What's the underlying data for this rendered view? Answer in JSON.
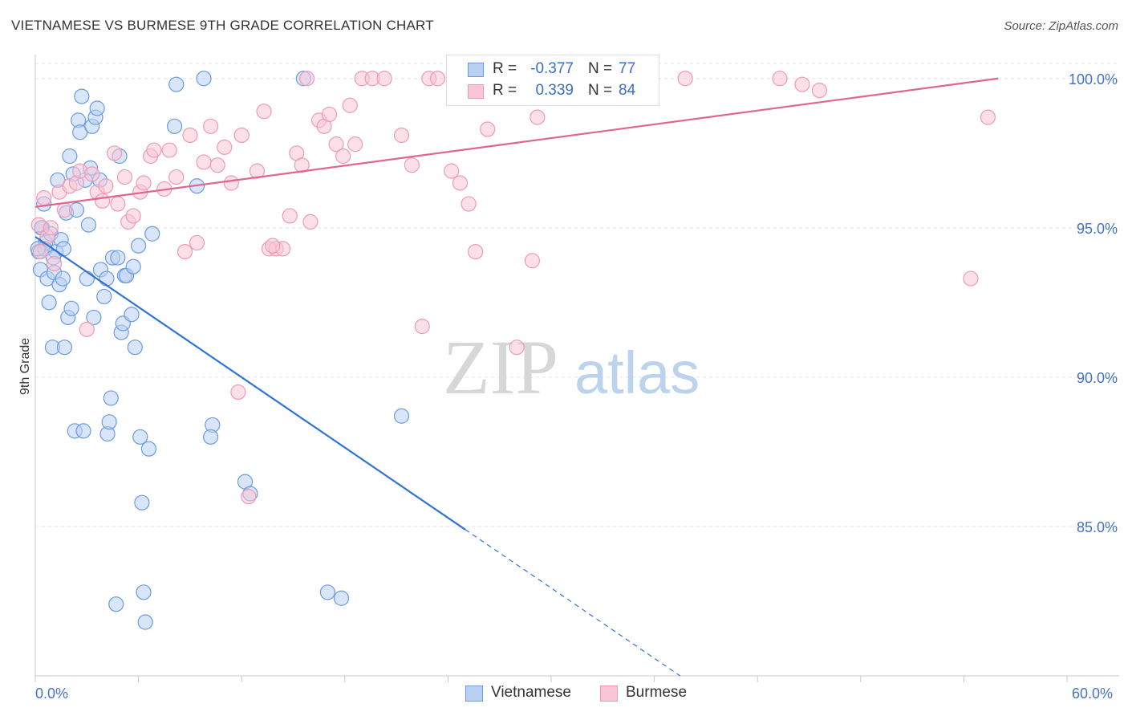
{
  "title": "VIETNAMESE VS BURMESE 9TH GRADE CORRELATION CHART",
  "source": "Source: ZipAtlas.com",
  "watermark": {
    "zip": "ZIP",
    "atlas": "atlas"
  },
  "legend": {
    "rows": [
      {
        "r_label": "R =",
        "r_value": "-0.377",
        "n_label": "N =",
        "n_value": "77"
      },
      {
        "r_label": "R =",
        "r_value": "0.339",
        "n_label": "N =",
        "n_value": "84"
      }
    ]
  },
  "bottom_legend": [
    "Vietnamese",
    "Burmese"
  ],
  "colors": {
    "vietnamese_fill": "#b9d0f2",
    "vietnamese_stroke": "#6b9be0",
    "vietnamese_line": "#2f72d6",
    "burmese_fill": "#f8c6d5",
    "burmese_stroke": "#ee9ab5",
    "burmese_line": "#e0668f",
    "tick_text": "#4472c4",
    "grid": "#e3e3e3"
  },
  "chart_data": {
    "type": "scatter",
    "title": "VIETNAMESE VS BURMESE 9TH GRADE CORRELATION CHART",
    "xlabel": "",
    "ylabel": "9th Grade",
    "xlim": [
      0,
      60
    ],
    "ylim": [
      80,
      100.8
    ],
    "x_tick_labels": [
      "0.0%",
      "60.0%"
    ],
    "y_ticks": [
      85,
      90,
      95,
      100
    ],
    "y_tick_labels": [
      "85.0%",
      "90.0%",
      "95.0%",
      "100.0%"
    ],
    "grid": true,
    "legend_position": "top-center",
    "series": [
      {
        "name": "Vietnamese",
        "r": -0.377,
        "n": 77,
        "trend": {
          "x0": 0,
          "y0": 94.7,
          "x1": 25.0,
          "y1": 84.9,
          "dashed_to_x": 37.5,
          "dashed_to_y": 80.0
        },
        "points": [
          [
            0.2,
            94.2
          ],
          [
            0.3,
            93.6
          ],
          [
            0.4,
            95.0
          ],
          [
            0.5,
            95.8
          ],
          [
            0.6,
            94.5
          ],
          [
            0.7,
            93.3
          ],
          [
            0.8,
            92.5
          ],
          [
            0.9,
            94.8
          ],
          [
            1.0,
            91.0
          ],
          [
            1.1,
            93.5
          ],
          [
            1.2,
            94.2
          ],
          [
            1.3,
            96.6
          ],
          [
            1.4,
            93.1
          ],
          [
            1.5,
            94.6
          ],
          [
            1.6,
            93.3
          ],
          [
            1.7,
            91.0
          ],
          [
            1.8,
            95.5
          ],
          [
            1.9,
            92.0
          ],
          [
            2.0,
            97.4
          ],
          [
            2.1,
            92.3
          ],
          [
            2.2,
            96.8
          ],
          [
            2.3,
            88.2
          ],
          [
            2.5,
            98.6
          ],
          [
            2.6,
            98.2
          ],
          [
            2.7,
            99.4
          ],
          [
            2.8,
            88.2
          ],
          [
            3.0,
            93.3
          ],
          [
            3.1,
            95.1
          ],
          [
            3.2,
            97.0
          ],
          [
            3.3,
            98.4
          ],
          [
            3.4,
            92.0
          ],
          [
            3.5,
            98.7
          ],
          [
            3.6,
            99.0
          ],
          [
            3.8,
            93.6
          ],
          [
            4.0,
            92.7
          ],
          [
            4.2,
            88.1
          ],
          [
            4.3,
            88.5
          ],
          [
            4.4,
            89.3
          ],
          [
            4.5,
            94.0
          ],
          [
            4.7,
            82.4
          ],
          [
            4.8,
            94.0
          ],
          [
            5.0,
            91.5
          ],
          [
            5.1,
            91.8
          ],
          [
            5.2,
            93.4
          ],
          [
            5.3,
            93.4
          ],
          [
            5.6,
            92.1
          ],
          [
            5.7,
            93.7
          ],
          [
            5.8,
            91.0
          ],
          [
            6.0,
            94.4
          ],
          [
            6.1,
            88.0
          ],
          [
            6.2,
            85.8
          ],
          [
            6.3,
            82.8
          ],
          [
            6.4,
            81.8
          ],
          [
            6.6,
            87.6
          ],
          [
            6.8,
            94.8
          ],
          [
            8.1,
            98.4
          ],
          [
            8.2,
            99.8
          ],
          [
            9.4,
            96.4
          ],
          [
            9.8,
            100.0
          ],
          [
            10.3,
            88.4
          ],
          [
            10.2,
            88.0
          ],
          [
            12.2,
            86.5
          ],
          [
            12.5,
            86.1
          ],
          [
            15.6,
            100.0
          ],
          [
            17.0,
            82.8
          ],
          [
            17.8,
            82.6
          ],
          [
            21.3,
            88.7
          ],
          [
            0.35,
            95.0
          ],
          [
            0.55,
            94.3
          ],
          [
            1.05,
            94.0
          ],
          [
            2.4,
            95.6
          ],
          [
            3.75,
            96.6
          ],
          [
            4.9,
            97.4
          ],
          [
            1.65,
            94.3
          ],
          [
            0.15,
            94.3
          ],
          [
            2.9,
            96.6
          ],
          [
            4.15,
            93.3
          ]
        ]
      },
      {
        "name": "Burmese",
        "r": 0.339,
        "n": 84,
        "trend": {
          "x0": 0,
          "y0": 95.7,
          "x1": 56.0,
          "y1": 100.0
        },
        "points": [
          [
            0.2,
            95.1
          ],
          [
            0.3,
            94.2
          ],
          [
            0.5,
            96.0
          ],
          [
            0.7,
            94.7
          ],
          [
            0.9,
            95.0
          ],
          [
            1.1,
            93.8
          ],
          [
            1.4,
            96.2
          ],
          [
            1.7,
            95.6
          ],
          [
            2.0,
            96.4
          ],
          [
            2.4,
            96.5
          ],
          [
            2.6,
            96.9
          ],
          [
            3.0,
            91.6
          ],
          [
            3.3,
            96.8
          ],
          [
            3.6,
            96.2
          ],
          [
            3.9,
            95.9
          ],
          [
            4.1,
            96.4
          ],
          [
            4.6,
            97.5
          ],
          [
            4.8,
            95.8
          ],
          [
            5.2,
            96.7
          ],
          [
            5.4,
            95.2
          ],
          [
            5.7,
            95.4
          ],
          [
            6.1,
            96.2
          ],
          [
            6.3,
            96.5
          ],
          [
            6.7,
            97.4
          ],
          [
            6.9,
            97.6
          ],
          [
            7.5,
            96.3
          ],
          [
            7.8,
            97.6
          ],
          [
            8.2,
            96.7
          ],
          [
            8.7,
            94.2
          ],
          [
            9.0,
            98.1
          ],
          [
            9.4,
            94.5
          ],
          [
            9.8,
            97.2
          ],
          [
            10.2,
            98.4
          ],
          [
            10.6,
            97.1
          ],
          [
            11.0,
            97.7
          ],
          [
            11.4,
            96.5
          ],
          [
            11.8,
            89.5
          ],
          [
            12.0,
            98.1
          ],
          [
            12.4,
            86.0
          ],
          [
            12.9,
            96.9
          ],
          [
            13.3,
            98.9
          ],
          [
            13.6,
            94.3
          ],
          [
            14.0,
            94.3
          ],
          [
            14.4,
            94.3
          ],
          [
            14.8,
            95.4
          ],
          [
            15.2,
            97.5
          ],
          [
            15.5,
            97.1
          ],
          [
            16.0,
            95.2
          ],
          [
            16.5,
            98.6
          ],
          [
            16.8,
            98.4
          ],
          [
            17.1,
            98.8
          ],
          [
            17.5,
            97.8
          ],
          [
            17.9,
            97.4
          ],
          [
            18.3,
            99.1
          ],
          [
            18.6,
            97.8
          ],
          [
            19.0,
            100.0
          ],
          [
            19.6,
            100.0
          ],
          [
            20.3,
            100.0
          ],
          [
            21.3,
            98.1
          ],
          [
            21.9,
            97.1
          ],
          [
            22.5,
            91.7
          ],
          [
            22.9,
            100.0
          ],
          [
            23.4,
            100.0
          ],
          [
            24.2,
            96.9
          ],
          [
            24.7,
            96.5
          ],
          [
            25.2,
            95.8
          ],
          [
            25.6,
            94.2
          ],
          [
            26.3,
            98.3
          ],
          [
            27.4,
            100.0
          ],
          [
            28.0,
            91.0
          ],
          [
            28.9,
            93.9
          ],
          [
            29.2,
            98.7
          ],
          [
            30.5,
            100.0
          ],
          [
            31.4,
            100.0
          ],
          [
            32.7,
            100.0
          ],
          [
            37.8,
            100.0
          ],
          [
            43.3,
            100.0
          ],
          [
            44.6,
            99.8
          ],
          [
            45.6,
            99.6
          ],
          [
            55.4,
            98.7
          ],
          [
            54.4,
            93.3
          ],
          [
            13.8,
            94.4
          ],
          [
            27.9,
            100.0
          ],
          [
            15.8,
            100.0
          ]
        ]
      }
    ]
  }
}
